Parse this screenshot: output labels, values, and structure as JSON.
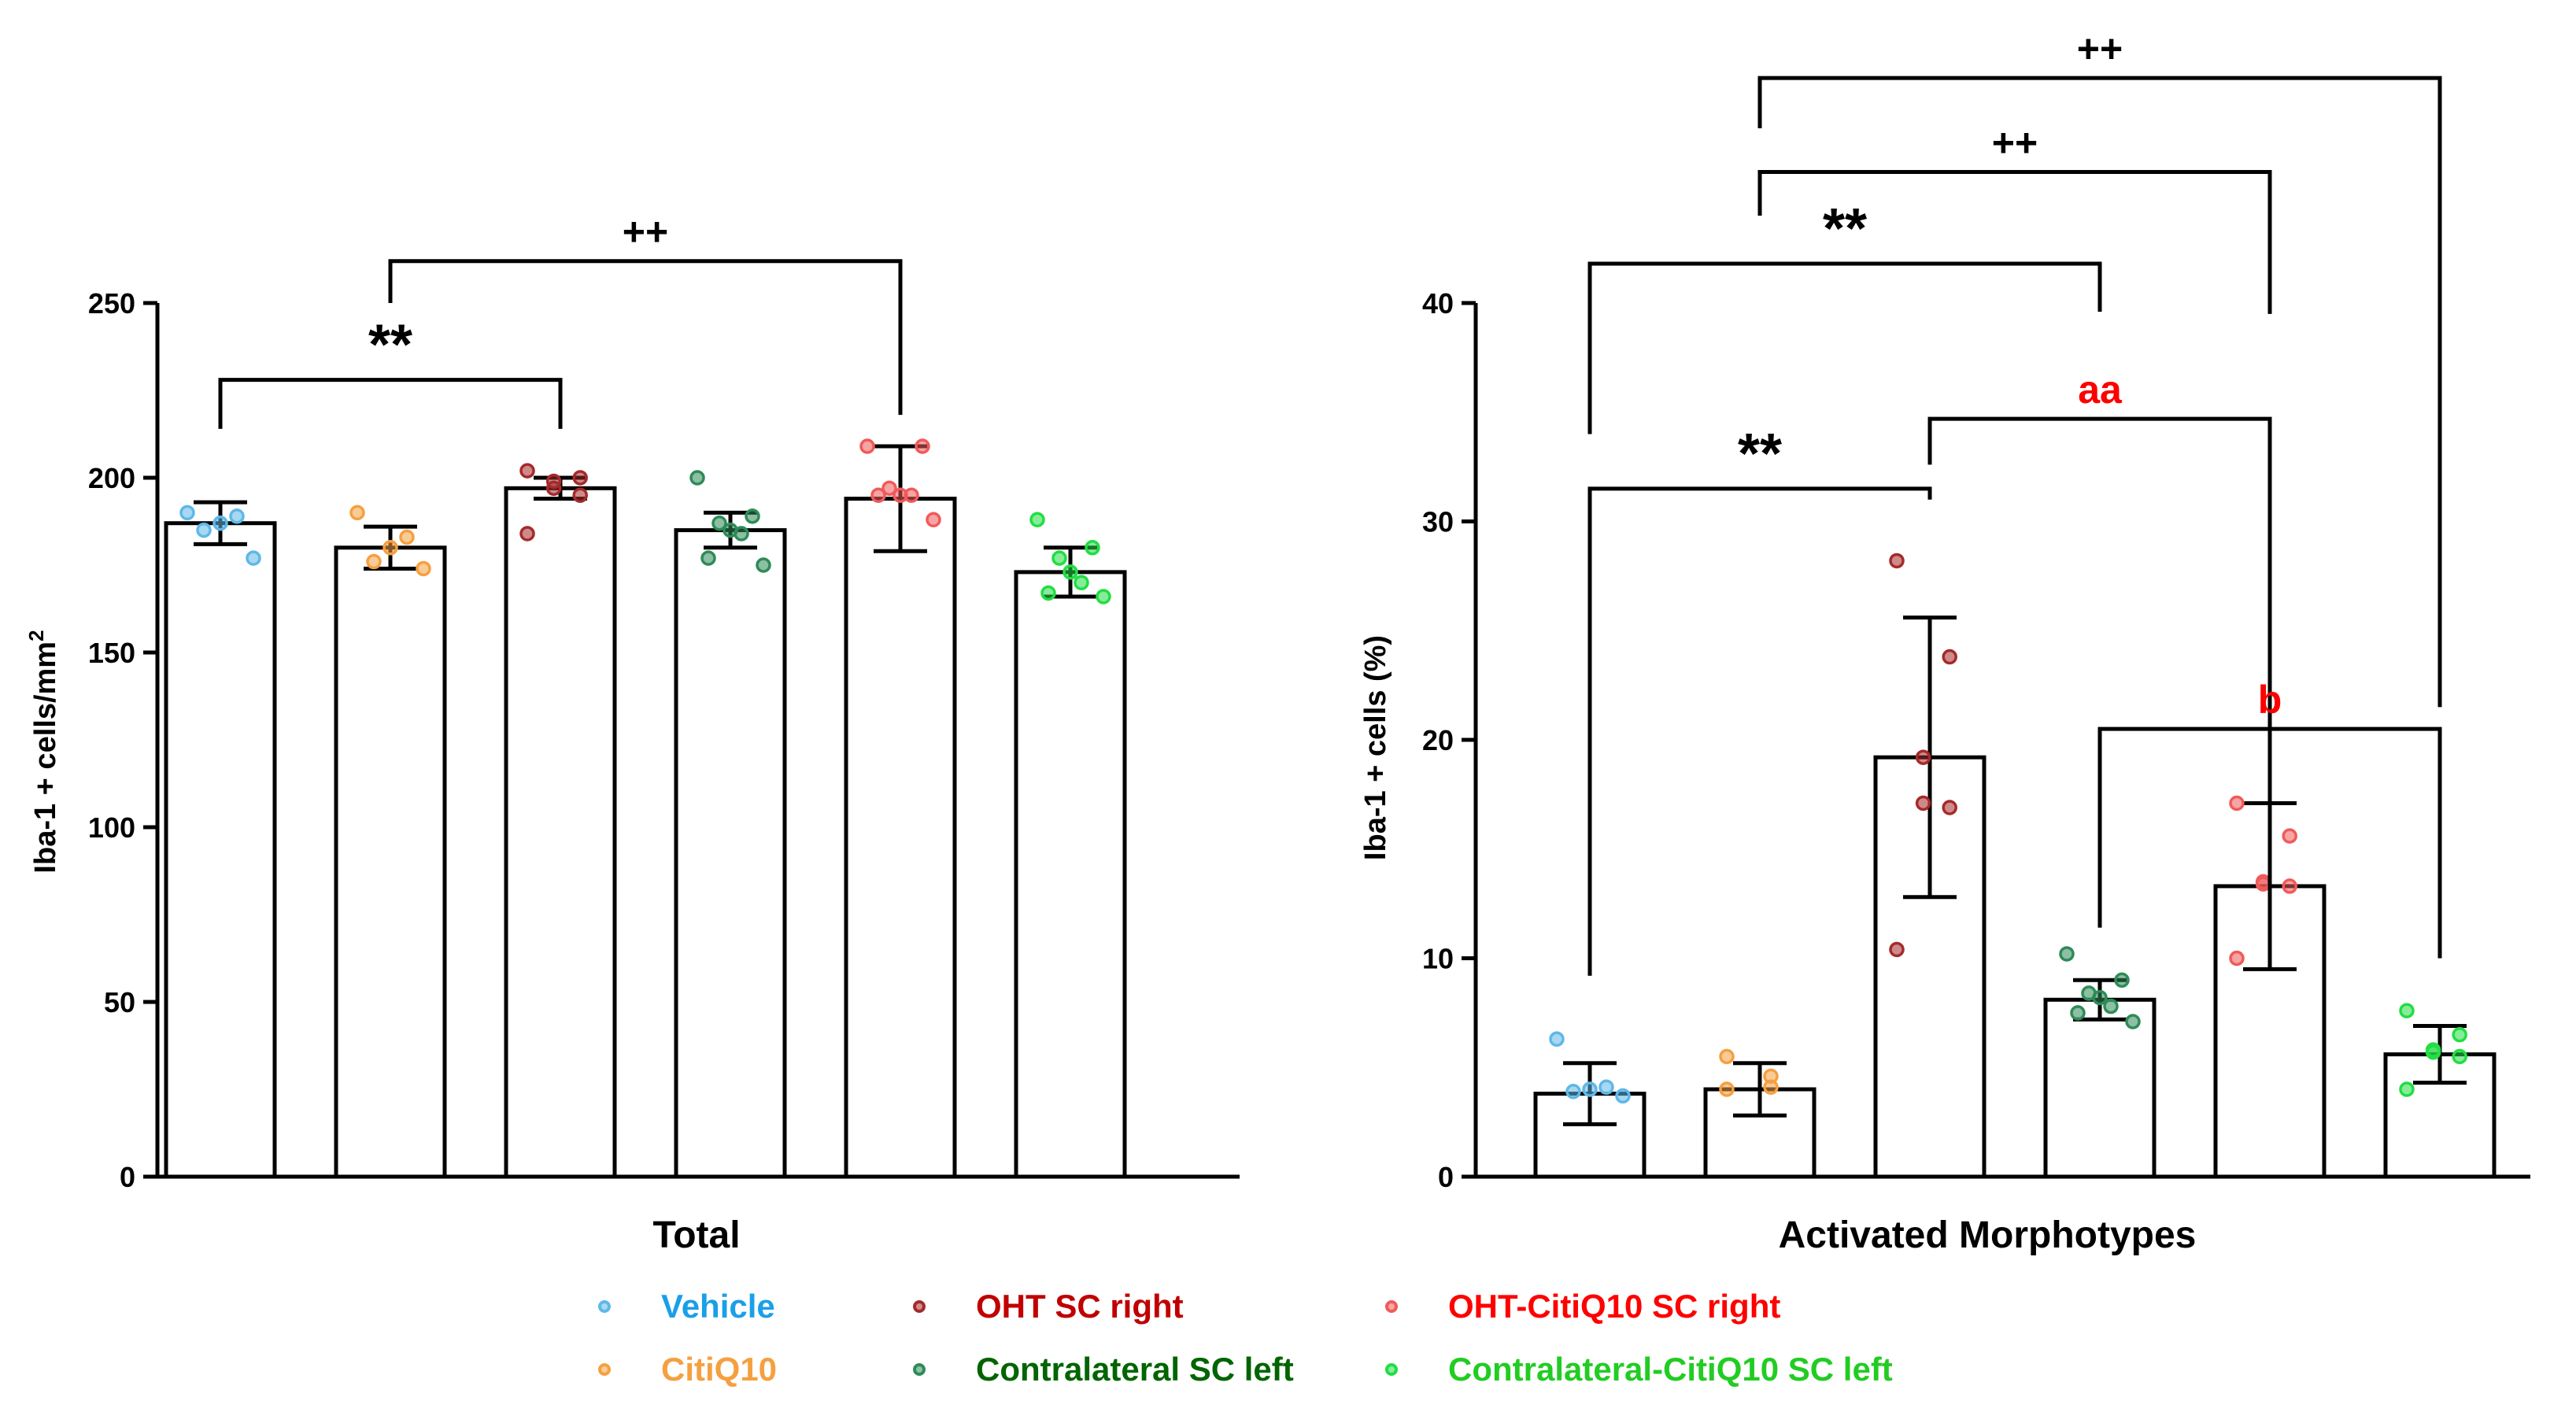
{
  "chart_data": [
    {
      "type": "bar",
      "title": "",
      "xlabel": "Total",
      "ylabel": "Iba-1 + cells/mm",
      "ylabel_sup": "2",
      "ylim": [
        0,
        250
      ],
      "yticks": [
        0,
        50,
        100,
        150,
        200,
        250
      ],
      "categories": [
        "Vehicle",
        "CitiQ10",
        "OHT SC right",
        "Contralateral SC left",
        "OHT-CitiQ10 SC right",
        "Contralateral-CitiQ10 SC left"
      ],
      "means": [
        187,
        180,
        197,
        185,
        194,
        173
      ],
      "sd": [
        6,
        6,
        3,
        5,
        15,
        7
      ],
      "points": [
        [
          190,
          189,
          187,
          185,
          177
        ],
        [
          190,
          183,
          180,
          176,
          174
        ],
        [
          202,
          200,
          199,
          197,
          195,
          184
        ],
        [
          200,
          189,
          187,
          185,
          184,
          177,
          175
        ],
        [
          209,
          209,
          197,
          195,
          195,
          195,
          188
        ],
        [
          188,
          180,
          177,
          173,
          170,
          167,
          166
        ]
      ],
      "brackets": [
        {
          "from": 0,
          "to": 2,
          "y": 228,
          "label": "**",
          "color": "#000000",
          "drop_left": 214,
          "drop_right": 214
        },
        {
          "from": 1,
          "to": 4,
          "y": 262,
          "label": "++",
          "color": "#000000",
          "drop_left": 250,
          "drop_right": 218
        }
      ]
    },
    {
      "type": "bar",
      "title": "",
      "xlabel": "Activated Morphotypes",
      "ylabel": "Iba-1 + cells (%)",
      "ylim": [
        0,
        40
      ],
      "yticks": [
        0,
        10,
        20,
        30,
        40
      ],
      "categories": [
        "Vehicle",
        "CitiQ10",
        "OHT SC right",
        "Contralateral SC left",
        "OHT-CitiQ10 SC right",
        "Contralateral-CitiQ10 SC left"
      ],
      "means": [
        3.8,
        4.0,
        19.2,
        8.1,
        13.3,
        5.6
      ],
      "sd": [
        1.4,
        1.2,
        6.4,
        0.9,
        3.8,
        1.3
      ],
      "points": [
        [
          6.3,
          4.1,
          4.0,
          3.9,
          3.7
        ],
        [
          5.5,
          4.6,
          4.1,
          4.0
        ],
        [
          28.2,
          23.8,
          19.2,
          17.1,
          16.9,
          10.4
        ],
        [
          10.2,
          9.0,
          8.4,
          8.2,
          7.8,
          7.5,
          7.1
        ],
        [
          17.1,
          15.6,
          13.5,
          13.4,
          13.3,
          10.0
        ],
        [
          7.6,
          6.5,
          5.8,
          5.7,
          5.5,
          4.0
        ]
      ],
      "brackets": [
        {
          "from": 0,
          "to": 2,
          "y": 31.5,
          "label": "**",
          "color": "#000000",
          "drop_left": 9.2,
          "drop_right": 31.0
        },
        {
          "from": 0,
          "to": 3,
          "y": 41.8,
          "label": "**",
          "color": "#000000",
          "drop_left": 34.0,
          "drop_right": 39.6
        },
        {
          "from": 2,
          "to": 4,
          "y": 34.7,
          "label": "aa",
          "color": "#ff0000",
          "drop_left": 32.6,
          "drop_right": 9.5
        },
        {
          "from": 3,
          "to": 5,
          "y": 20.5,
          "label": "b",
          "color": "#ff0000",
          "drop_left": 11.4,
          "drop_right": 10.0
        },
        {
          "from": 1,
          "to": 4,
          "y": 46.0,
          "label": "++",
          "color": "#000000",
          "drop_left": 44.0,
          "drop_right": 39.5
        },
        {
          "from": 1,
          "to": 5,
          "y": 50.3,
          "label": "++",
          "color": "#000000",
          "drop_left": 48.0,
          "drop_right": 21.5
        }
      ]
    }
  ],
  "legend": [
    {
      "label": "Vehicle",
      "color": "#1a9fe8",
      "dot": "#5fb8e8"
    },
    {
      "label": "OHT SC right",
      "color": "#c00000",
      "dot": "#a52a2a"
    },
    {
      "label": "OHT-CitiQ10 SC right",
      "color": "#ff0000",
      "dot": "#f05a5a"
    },
    {
      "label": "CitiQ10",
      "color": "#f5a040",
      "dot": "#f5a040"
    },
    {
      "label": "Contralateral SC left",
      "color": "#006400",
      "dot": "#2e8b57"
    },
    {
      "label": "Contralateral-CitiQ10 SC left",
      "color": "#22cc22",
      "dot": "#22dd44"
    }
  ]
}
